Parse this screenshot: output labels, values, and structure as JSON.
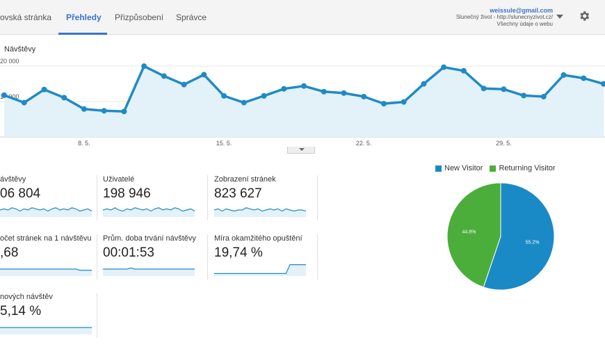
{
  "nav": {
    "tabs": [
      {
        "label": "ovská stránka",
        "active": false
      },
      {
        "label": "Přehledy",
        "active": true
      },
      {
        "label": "Přizpůsobení",
        "active": false
      },
      {
        "label": "Správce",
        "active": false
      }
    ]
  },
  "account": {
    "email": "weissule@gmail.com",
    "property": "Slunečný život - http://slunecnyzivot.cz/",
    "view": "Všechny údaje o webu"
  },
  "icons": {
    "settings": "gear-icon",
    "account_menu": "caret-down-icon",
    "collapse": "chevron-down-icon"
  },
  "colors": {
    "accent": "#3a74c8",
    "line": "#1f8ac7",
    "fill": "#e3f1f9",
    "new_visitor": "#1a8ac6",
    "returning_visitor": "#4bae3a"
  },
  "chart_data": [
    {
      "type": "area",
      "title": "Návštěvy",
      "y_ticks": [
        "20 000",
        "10 000"
      ],
      "ylim": [
        0,
        20000
      ],
      "x_ticks": [
        "8. 5.",
        "15. 5.",
        "22. 5.",
        "29. 5."
      ],
      "grid": true,
      "values": [
        11800,
        9700,
        13400,
        11100,
        7900,
        7400,
        7200,
        20000,
        17200,
        14800,
        17600,
        11600,
        9700,
        11600,
        13600,
        14400,
        12800,
        12400,
        11400,
        9400,
        9900,
        15000,
        19700,
        18700,
        13700,
        13500,
        11700,
        11400,
        17500,
        16600,
        15000
      ]
    },
    {
      "type": "pie",
      "legend": "top",
      "labels": [
        "New Visitor",
        "Returning Visitor"
      ],
      "values": [
        55.2,
        44.8
      ],
      "value_labels": [
        "55.2%",
        "44.8%"
      ]
    }
  ],
  "metrics": [
    {
      "label": "ávštěvy",
      "value": "06 804",
      "spark": [
        5,
        6,
        5,
        7,
        6,
        4,
        6,
        5,
        7,
        6,
        5,
        6,
        4,
        6,
        7,
        5,
        6,
        5,
        7,
        6,
        4,
        5,
        6,
        4
      ]
    },
    {
      "label": "Uživatelé",
      "value": "198 946",
      "spark": [
        5,
        6,
        5,
        7,
        5,
        4,
        6,
        5,
        7,
        6,
        5,
        6,
        4,
        6,
        7,
        5,
        6,
        5,
        7,
        6,
        4,
        5,
        6,
        4
      ]
    },
    {
      "label": "Zobrazení stránek",
      "value": "823 627",
      "spark": [
        5,
        6,
        4,
        6,
        5,
        4,
        5,
        5,
        7,
        6,
        5,
        6,
        4,
        5,
        6,
        5,
        6,
        4,
        6,
        5,
        4,
        5,
        5,
        4
      ]
    },
    {
      "label": "očet stránek na 1 návštěvu",
      "value": ",68",
      "spark": [
        5,
        5,
        5,
        5,
        5,
        5,
        5,
        5,
        5,
        5,
        5,
        5,
        5,
        5,
        5,
        5,
        5,
        5,
        5,
        5,
        4,
        4,
        4,
        4
      ]
    },
    {
      "label": "Prům. doba trvání návštěvy",
      "value": "00:01:53",
      "spark": [
        5,
        5,
        5,
        5,
        5,
        5,
        5,
        6,
        5,
        5,
        5,
        5,
        5,
        5,
        5,
        5,
        5,
        5,
        5,
        5,
        5,
        5,
        5,
        5
      ]
    },
    {
      "label": "Míra okamžitého opuštění",
      "value": "19,74 %",
      "spark": [
        1,
        1,
        1,
        1,
        1,
        1,
        1,
        1,
        1,
        1,
        1,
        1,
        1,
        1,
        1,
        1,
        1,
        1,
        1,
        9,
        9,
        9,
        9,
        9
      ]
    },
    {
      "label": " nových návštěv",
      "value": "5,14 %",
      "spark": [
        5,
        5,
        5,
        5,
        5,
        5,
        5,
        5,
        5,
        5,
        5,
        5,
        5,
        5,
        5,
        5,
        5,
        5,
        5,
        5,
        5,
        5,
        5,
        5
      ]
    }
  ]
}
